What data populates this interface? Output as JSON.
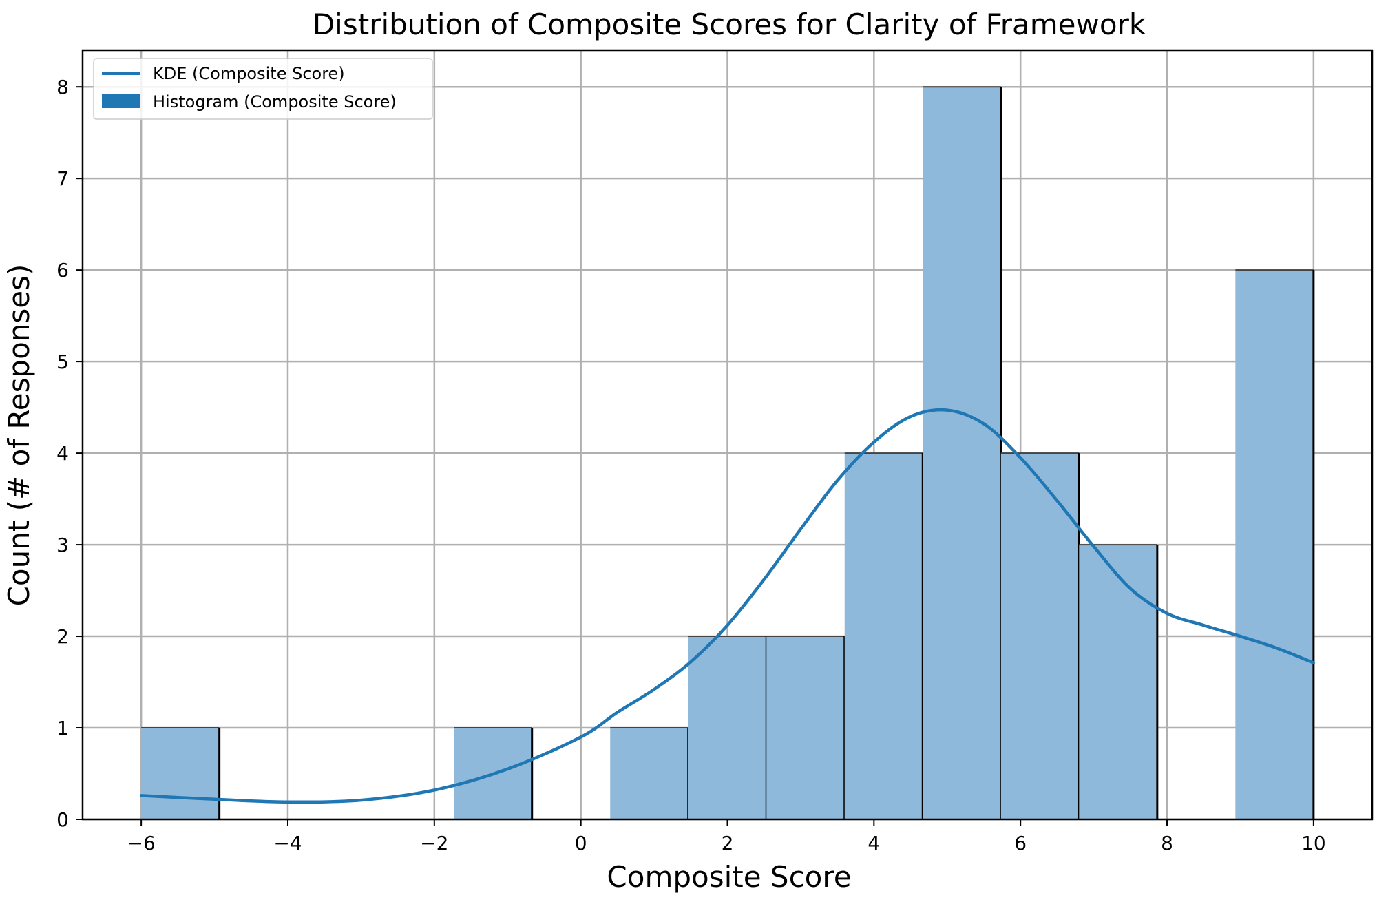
{
  "chart_data": {
    "type": "bar",
    "title": "Distribution of Composite Scores for Clarity of Framework",
    "xlabel": "Composite Score",
    "ylabel": "Count (# of Responses)",
    "xlim": [
      -6.8,
      10.8
    ],
    "ylim": [
      0,
      8.4
    ],
    "grid": true,
    "legend_placement": "top-left",
    "x_ticks": [
      -6,
      -4,
      -2,
      0,
      2,
      4,
      6,
      8,
      10
    ],
    "x_tick_labels": [
      "−6",
      "−4",
      "−2",
      "0",
      "2",
      "4",
      "6",
      "8",
      "10"
    ],
    "y_ticks": [
      0,
      1,
      2,
      3,
      4,
      5,
      6,
      7,
      8
    ],
    "y_tick_labels": [
      "0",
      "1",
      "2",
      "3",
      "4",
      "5",
      "6",
      "7",
      "8"
    ],
    "histogram": {
      "name": "Histogram (Composite Score)",
      "bin_edges": [
        -6.0,
        -4.9333,
        -3.8667,
        -2.8,
        -1.7333,
        -0.6667,
        0.4,
        1.4667,
        2.5333,
        3.6,
        4.6667,
        5.7333,
        6.8,
        7.8667,
        8.9333,
        10.0
      ],
      "counts": [
        1,
        0,
        0,
        0,
        1,
        0,
        1,
        2,
        2,
        4,
        8,
        4,
        3,
        0,
        6
      ]
    },
    "kde": {
      "name": "KDE (Composite Score)",
      "x": [
        -6,
        -5,
        -4,
        -3,
        -2,
        -1,
        0,
        0.5,
        1,
        1.5,
        2,
        2.5,
        3,
        3.5,
        4,
        4.5,
        5,
        5.5,
        6,
        6.5,
        7,
        7.5,
        8,
        8.5,
        9,
        9.5,
        10
      ],
      "y": [
        0.26,
        0.22,
        0.19,
        0.21,
        0.32,
        0.55,
        0.9,
        1.17,
        1.42,
        1.72,
        2.12,
        2.62,
        3.17,
        3.7,
        4.12,
        4.4,
        4.47,
        4.32,
        3.95,
        3.48,
        2.98,
        2.52,
        2.25,
        2.12,
        2.0,
        1.87,
        1.71
      ]
    },
    "colors": {
      "line": "#1f77b4",
      "bar_fill": "#8fb9da",
      "bar_edge": "#000000",
      "legend_patch": "#1f77b4",
      "grid": "#b0b0b0"
    }
  }
}
